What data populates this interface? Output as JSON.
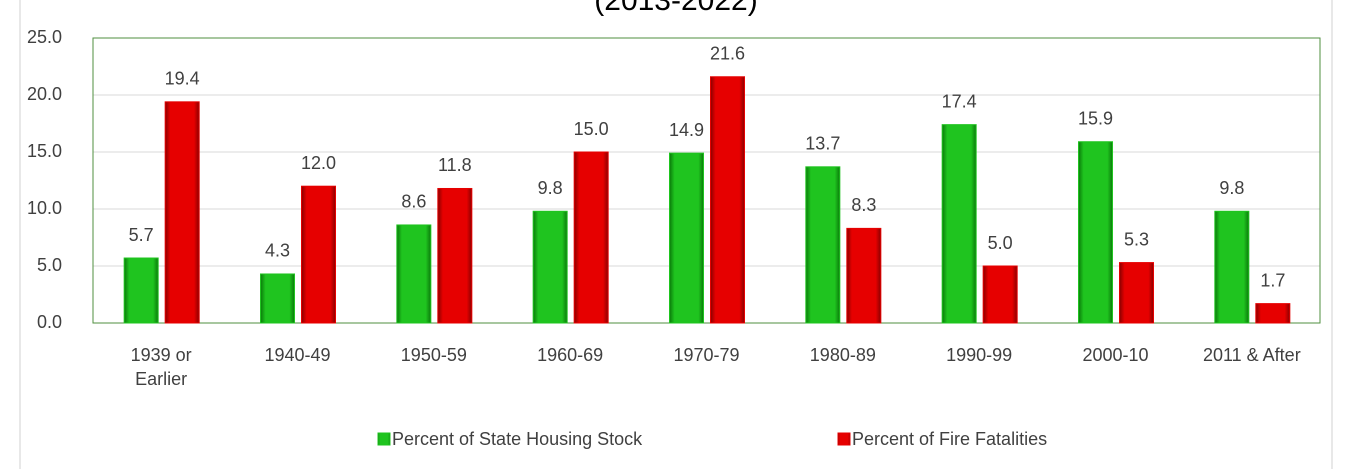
{
  "chart_data": {
    "type": "bar",
    "title": "(2013-2022)",
    "categories": [
      "1939 or\nEarlier",
      "1940-49",
      "1950-59",
      "1960-69",
      "1970-79",
      "1980-89",
      "1990-99",
      "2000-10",
      "2011 & After"
    ],
    "series": [
      {
        "name": "Percent of State Housing Stock",
        "color": "#1fc41f",
        "values": [
          5.7,
          4.3,
          8.6,
          9.8,
          14.9,
          13.7,
          17.4,
          15.9,
          9.8
        ]
      },
      {
        "name": "Percent of Fire Fatalities",
        "color": "#e60000",
        "values": [
          19.4,
          12.0,
          11.8,
          15.0,
          21.6,
          8.3,
          5.0,
          5.3,
          1.7
        ],
        "value_labels": [
          "19.4",
          "12.0",
          "11.8",
          "15.0",
          "21.6",
          "8.3",
          "5.0",
          "5.3",
          "1.7"
        ]
      }
    ],
    "value_labels_0": null,
    "ylim": [
      0,
      25
    ],
    "yticks": [
      {
        "value": 0,
        "label": "0.0"
      },
      {
        "value": 5,
        "label": "5.0"
      },
      {
        "value": 10,
        "label": "10.0"
      },
      {
        "value": 15,
        "label": "15.0"
      },
      {
        "value": 20,
        "label": "20.0"
      },
      {
        "value": 25,
        "label": "25.0"
      }
    ],
    "grid": true,
    "legend": "bottom"
  }
}
